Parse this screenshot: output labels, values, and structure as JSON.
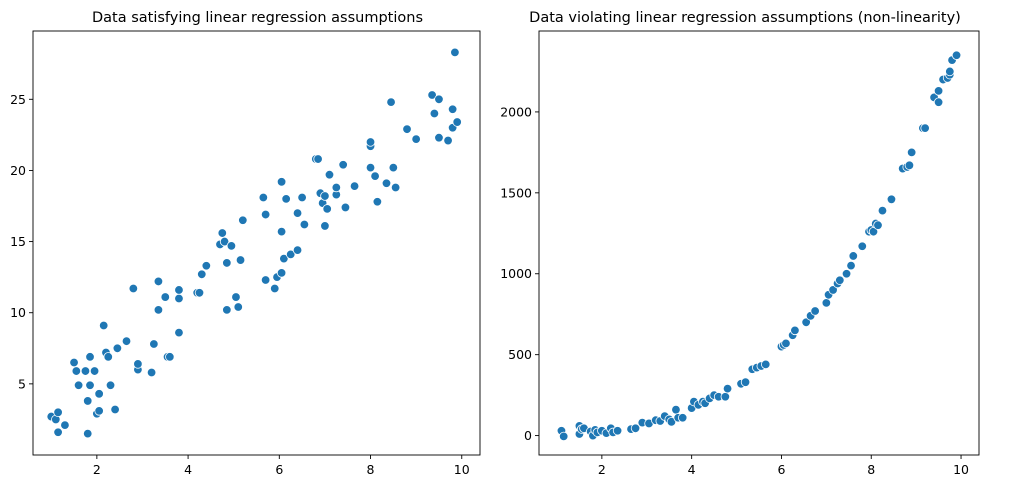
{
  "chart_data": [
    {
      "type": "scatter",
      "title": "Data satisfying linear regression assumptions",
      "xlabel": "",
      "ylabel": "",
      "xlim": [
        0.6,
        10.4
      ],
      "ylim": [
        0.0,
        29.8
      ],
      "xticks": [
        2,
        4,
        6,
        8,
        10
      ],
      "yticks": [
        5,
        10,
        15,
        20,
        25
      ],
      "grid": false,
      "color": "#1f77b4",
      "points": [
        [
          1.0,
          2.7
        ],
        [
          1.1,
          2.5
        ],
        [
          1.15,
          1.6
        ],
        [
          1.15,
          3.0
        ],
        [
          1.3,
          2.1
        ],
        [
          1.5,
          6.5
        ],
        [
          1.55,
          5.9
        ],
        [
          1.6,
          4.9
        ],
        [
          1.75,
          5.9
        ],
        [
          1.8,
          1.5
        ],
        [
          1.8,
          3.8
        ],
        [
          1.85,
          6.9
        ],
        [
          1.85,
          4.9
        ],
        [
          1.95,
          5.9
        ],
        [
          2.0,
          2.9
        ],
        [
          2.05,
          3.1
        ],
        [
          2.05,
          4.3
        ],
        [
          2.15,
          9.1
        ],
        [
          2.2,
          7.2
        ],
        [
          2.25,
          6.9
        ],
        [
          2.3,
          4.9
        ],
        [
          2.4,
          3.2
        ],
        [
          2.45,
          7.5
        ],
        [
          2.65,
          8.0
        ],
        [
          2.8,
          11.7
        ],
        [
          2.9,
          6.0
        ],
        [
          2.9,
          6.4
        ],
        [
          3.2,
          5.8
        ],
        [
          3.25,
          7.8
        ],
        [
          3.35,
          12.2
        ],
        [
          3.35,
          10.2
        ],
        [
          3.5,
          11.1
        ],
        [
          3.55,
          6.9
        ],
        [
          3.6,
          6.9
        ],
        [
          3.8,
          11.0
        ],
        [
          3.8,
          11.6
        ],
        [
          3.8,
          8.6
        ],
        [
          4.2,
          11.4
        ],
        [
          4.25,
          11.4
        ],
        [
          4.3,
          12.7
        ],
        [
          4.4,
          13.3
        ],
        [
          4.7,
          14.8
        ],
        [
          4.75,
          15.6
        ],
        [
          4.8,
          15.0
        ],
        [
          4.85,
          13.5
        ],
        [
          4.85,
          10.2
        ],
        [
          4.95,
          14.7
        ],
        [
          5.05,
          11.1
        ],
        [
          5.1,
          10.4
        ],
        [
          5.15,
          13.7
        ],
        [
          5.2,
          16.5
        ],
        [
          5.65,
          18.1
        ],
        [
          5.7,
          12.3
        ],
        [
          5.7,
          16.9
        ],
        [
          5.9,
          11.7
        ],
        [
          5.95,
          12.5
        ],
        [
          6.05,
          12.8
        ],
        [
          6.05,
          15.7
        ],
        [
          6.05,
          19.2
        ],
        [
          6.1,
          13.8
        ],
        [
          6.15,
          18.0
        ],
        [
          6.25,
          14.1
        ],
        [
          6.4,
          17.0
        ],
        [
          6.4,
          14.4
        ],
        [
          6.5,
          18.1
        ],
        [
          6.55,
          16.2
        ],
        [
          6.8,
          20.8
        ],
        [
          6.85,
          20.8
        ],
        [
          6.9,
          18.4
        ],
        [
          6.95,
          17.7
        ],
        [
          7.0,
          16.1
        ],
        [
          7.0,
          18.2
        ],
        [
          7.05,
          17.3
        ],
        [
          7.1,
          19.7
        ],
        [
          7.25,
          18.3
        ],
        [
          7.25,
          18.8
        ],
        [
          7.4,
          20.4
        ],
        [
          7.45,
          17.4
        ],
        [
          7.65,
          18.9
        ],
        [
          8.0,
          21.7
        ],
        [
          8.0,
          22.0
        ],
        [
          8.0,
          20.2
        ],
        [
          8.1,
          19.6
        ],
        [
          8.15,
          17.8
        ],
        [
          8.35,
          19.1
        ],
        [
          8.45,
          24.8
        ],
        [
          8.5,
          20.2
        ],
        [
          8.55,
          18.8
        ],
        [
          8.8,
          22.9
        ],
        [
          9.0,
          22.2
        ],
        [
          9.35,
          25.3
        ],
        [
          9.4,
          24.0
        ],
        [
          9.5,
          25.0
        ],
        [
          9.5,
          22.3
        ],
        [
          9.7,
          22.1
        ],
        [
          9.8,
          24.3
        ],
        [
          9.8,
          23.0
        ],
        [
          9.85,
          28.3
        ],
        [
          9.9,
          23.4
        ]
      ]
    },
    {
      "type": "scatter",
      "title": "Data violating linear regression assumptions (non-linearity)",
      "xlabel": "",
      "ylabel": "",
      "xlim": [
        0.6,
        10.4
      ],
      "ylim": [
        -120,
        2500
      ],
      "xticks": [
        2,
        4,
        6,
        8,
        10
      ],
      "yticks": [
        0,
        500,
        1000,
        1500,
        2000
      ],
      "grid": false,
      "color": "#1f77b4",
      "points": [
        [
          1.1,
          30
        ],
        [
          1.15,
          -5
        ],
        [
          1.5,
          60
        ],
        [
          1.5,
          10
        ],
        [
          1.55,
          40
        ],
        [
          1.6,
          45
        ],
        [
          1.75,
          25
        ],
        [
          1.8,
          0
        ],
        [
          1.85,
          35
        ],
        [
          1.9,
          20
        ],
        [
          2.0,
          30
        ],
        [
          2.1,
          15
        ],
        [
          2.2,
          45
        ],
        [
          2.25,
          20
        ],
        [
          2.35,
          30
        ],
        [
          2.65,
          40
        ],
        [
          2.75,
          45
        ],
        [
          2.9,
          80
        ],
        [
          3.05,
          75
        ],
        [
          3.2,
          95
        ],
        [
          3.3,
          90
        ],
        [
          3.4,
          120
        ],
        [
          3.5,
          100
        ],
        [
          3.55,
          85
        ],
        [
          3.65,
          160
        ],
        [
          3.7,
          110
        ],
        [
          3.8,
          110
        ],
        [
          4.0,
          170
        ],
        [
          4.05,
          210
        ],
        [
          4.15,
          190
        ],
        [
          4.25,
          210
        ],
        [
          4.3,
          200
        ],
        [
          4.4,
          230
        ],
        [
          4.5,
          250
        ],
        [
          4.6,
          240
        ],
        [
          4.75,
          240
        ],
        [
          4.8,
          290
        ],
        [
          5.1,
          320
        ],
        [
          5.2,
          330
        ],
        [
          5.35,
          410
        ],
        [
          5.45,
          420
        ],
        [
          5.55,
          430
        ],
        [
          5.65,
          440
        ],
        [
          6.0,
          550
        ],
        [
          6.05,
          560
        ],
        [
          6.1,
          570
        ],
        [
          6.25,
          620
        ],
        [
          6.3,
          650
        ],
        [
          6.55,
          700
        ],
        [
          6.65,
          740
        ],
        [
          6.75,
          770
        ],
        [
          7.0,
          820
        ],
        [
          7.05,
          870
        ],
        [
          7.15,
          900
        ],
        [
          7.25,
          940
        ],
        [
          7.3,
          960
        ],
        [
          7.45,
          1000
        ],
        [
          7.55,
          1050
        ],
        [
          7.6,
          1110
        ],
        [
          7.8,
          1170
        ],
        [
          7.95,
          1260
        ],
        [
          8.0,
          1270
        ],
        [
          8.05,
          1260
        ],
        [
          8.1,
          1310
        ],
        [
          8.15,
          1300
        ],
        [
          8.25,
          1390
        ],
        [
          8.45,
          1460
        ],
        [
          8.7,
          1650
        ],
        [
          8.8,
          1660
        ],
        [
          8.85,
          1670
        ],
        [
          8.9,
          1750
        ],
        [
          9.15,
          1900
        ],
        [
          9.2,
          1900
        ],
        [
          9.4,
          2090
        ],
        [
          9.5,
          2060
        ],
        [
          9.5,
          2130
        ],
        [
          9.6,
          2200
        ],
        [
          9.7,
          2210
        ],
        [
          9.75,
          2230
        ],
        [
          9.75,
          2250
        ],
        [
          9.8,
          2320
        ],
        [
          9.9,
          2350
        ]
      ]
    }
  ]
}
